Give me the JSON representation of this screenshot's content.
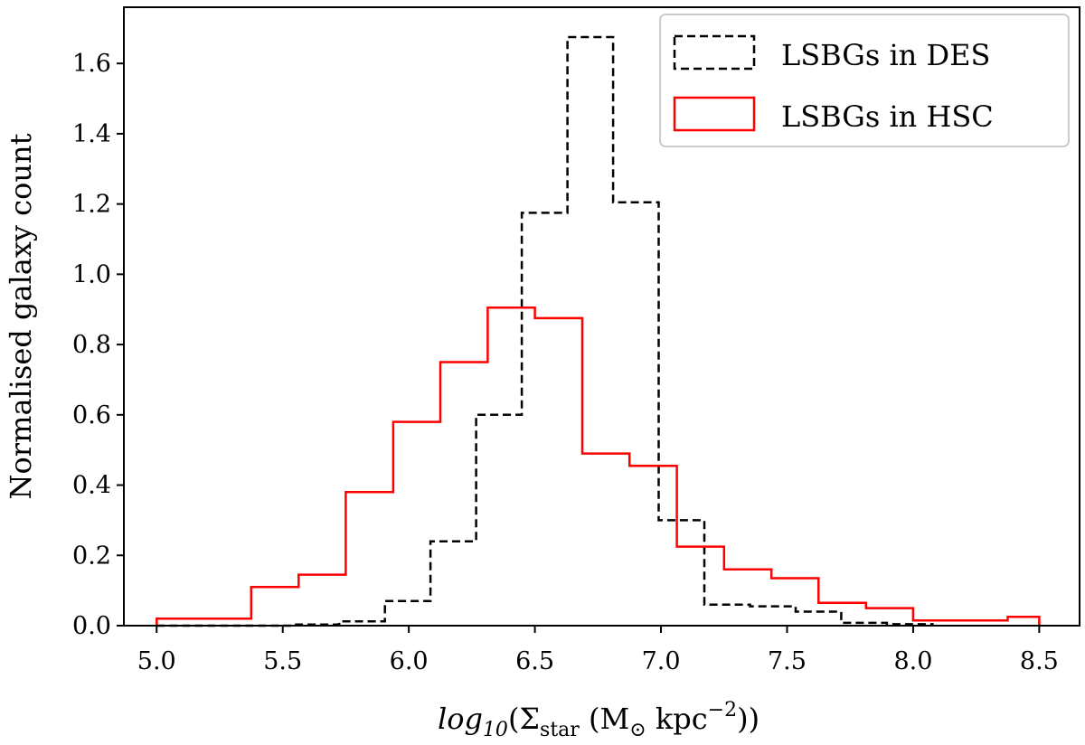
{
  "chart_data": {
    "type": "histogram-step",
    "xlabel_parts": {
      "log": "log",
      "log_sub": "10",
      "open": "(Σ",
      "sigma_sub": "star",
      "unit": " (M",
      "sun": "⊙",
      "kpc": " kpc",
      "exp": "−2",
      "close": "))"
    },
    "ylabel": "Normalised galaxy count",
    "xlim": [
      4.87,
      8.66
    ],
    "ylim": [
      0.0,
      1.76
    ],
    "xticks": [
      5.0,
      5.5,
      6.0,
      6.5,
      7.0,
      7.5,
      8.0,
      8.5
    ],
    "xtick_labels": [
      "5.0",
      "5.5",
      "6.0",
      "6.5",
      "7.0",
      "7.5",
      "8.0",
      "8.5"
    ],
    "yticks": [
      0.0,
      0.2,
      0.4,
      0.6,
      0.8,
      1.0,
      1.2,
      1.4,
      1.6
    ],
    "ytick_labels": [
      "0.0",
      "0.2",
      "0.4",
      "0.6",
      "0.8",
      "1.0",
      "1.2",
      "1.4",
      "1.6"
    ],
    "legend_position": "top-right",
    "series": [
      {
        "name": "LSBGs in DES",
        "color": "#000000",
        "style": "dashed",
        "edges": [
          5.0,
          5.181,
          5.362,
          5.543,
          5.724,
          5.905,
          6.086,
          6.267,
          6.448,
          6.629,
          6.81,
          6.991,
          7.172,
          7.353,
          7.534,
          7.715,
          7.896,
          8.077
        ],
        "values": [
          0.0,
          0.0,
          0.0,
          0.003,
          0.012,
          0.07,
          0.24,
          0.6,
          1.175,
          1.675,
          1.205,
          0.3,
          0.06,
          0.055,
          0.04,
          0.008,
          0.004
        ]
      },
      {
        "name": "LSBGs in HSC",
        "color": "#ff0000",
        "style": "solid",
        "edges": [
          5.0,
          5.188,
          5.375,
          5.563,
          5.75,
          5.938,
          6.125,
          6.313,
          6.5,
          6.688,
          6.875,
          7.063,
          7.25,
          7.438,
          7.625,
          7.813,
          8.0,
          8.188,
          8.375,
          8.5
        ],
        "values": [
          0.02,
          0.02,
          0.11,
          0.145,
          0.38,
          0.58,
          0.75,
          0.905,
          0.875,
          0.49,
          0.455,
          0.225,
          0.16,
          0.135,
          0.065,
          0.05,
          0.015,
          0.015,
          0.025
        ]
      }
    ]
  }
}
